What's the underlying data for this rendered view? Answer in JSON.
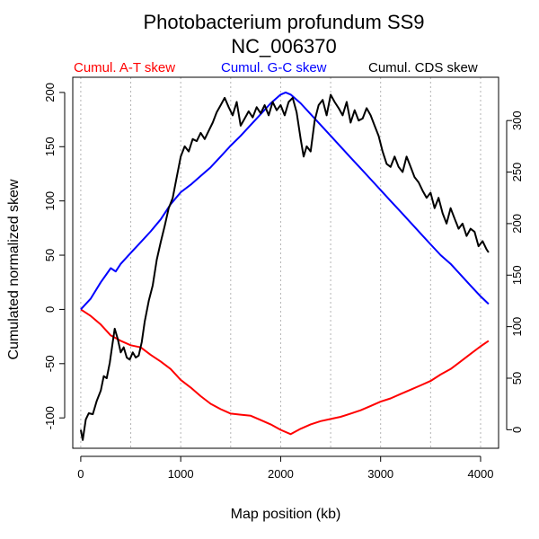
{
  "chart_data": {
    "type": "line",
    "title": "Photobacterium profundum SS9",
    "subtitle": "NC_006370",
    "xlabel": "Map position (kb)",
    "ylabel": "Cumulated normalized skew",
    "xlim": [
      -80,
      4180
    ],
    "ylim": [
      -128,
      214
    ],
    "y2lim": [
      -18,
      342
    ],
    "x_ticks": [
      0,
      1000,
      2000,
      3000,
      4000
    ],
    "y_ticks": [
      -100,
      -50,
      0,
      50,
      100,
      150,
      200
    ],
    "y2_ticks": [
      0,
      50,
      100,
      150,
      200,
      250,
      300
    ],
    "vgrid": [
      0,
      500,
      1000,
      1500,
      2000,
      2500,
      3000,
      3500,
      4000
    ],
    "legend": [
      {
        "label": "Cumul. A-T skew",
        "color": "#ff0000"
      },
      {
        "label": "Cumul. G-C skew",
        "color": "#0000ff"
      },
      {
        "label": "Cumul. CDS skew",
        "color": "#000000"
      }
    ],
    "series": [
      {
        "name": "Cumul. A-T skew",
        "color": "#ff0000",
        "axis": "left",
        "x": [
          0,
          100,
          200,
          300,
          400,
          500,
          600,
          700,
          800,
          900,
          1000,
          1100,
          1200,
          1300,
          1400,
          1500,
          1600,
          1700,
          1800,
          1900,
          2000,
          2100,
          2200,
          2300,
          2400,
          2500,
          2600,
          2700,
          2800,
          2900,
          3000,
          3100,
          3200,
          3300,
          3400,
          3500,
          3600,
          3700,
          3800,
          3900,
          4000,
          4080
        ],
        "y": [
          0,
          -6,
          -14,
          -24,
          -29,
          -33,
          -35,
          -42,
          -48,
          -55,
          -65,
          -72,
          -80,
          -87,
          -92,
          -96,
          -97,
          -98,
          -102,
          -106,
          -111,
          -115,
          -110,
          -106,
          -103,
          -101,
          -99,
          -96,
          -93,
          -89,
          -85,
          -82,
          -78,
          -74,
          -70,
          -66,
          -60,
          -55,
          -48,
          -41,
          -34,
          -29
        ]
      },
      {
        "name": "Cumul. G-C skew",
        "color": "#0000ff",
        "axis": "left",
        "x": [
          0,
          100,
          200,
          300,
          350,
          400,
          500,
          600,
          700,
          800,
          900,
          1000,
          1100,
          1200,
          1300,
          1400,
          1500,
          1600,
          1700,
          1800,
          1900,
          2000,
          2050,
          2100,
          2200,
          2300,
          2400,
          2500,
          2600,
          2700,
          2800,
          2900,
          3000,
          3100,
          3200,
          3300,
          3400,
          3500,
          3600,
          3700,
          3800,
          3900,
          4000,
          4080
        ],
        "y": [
          0,
          10,
          25,
          38,
          35,
          42,
          52,
          62,
          72,
          83,
          97,
          108,
          115,
          123,
          131,
          141,
          151,
          160,
          170,
          180,
          190,
          198,
          200,
          198,
          190,
          180,
          170,
          160,
          150,
          140,
          130,
          120,
          110,
          100,
          90,
          80,
          70,
          60,
          50,
          42,
          32,
          22,
          12,
          5
        ]
      },
      {
        "name": "Cumul. CDS skew",
        "color": "#000000",
        "axis": "right",
        "x": [
          0,
          20,
          50,
          80,
          120,
          160,
          200,
          230,
          260,
          290,
          320,
          340,
          370,
          400,
          430,
          460,
          490,
          520,
          550,
          580,
          610,
          640,
          680,
          720,
          760,
          800,
          840,
          880,
          920,
          960,
          1000,
          1040,
          1080,
          1120,
          1160,
          1200,
          1240,
          1280,
          1320,
          1360,
          1400,
          1440,
          1480,
          1520,
          1560,
          1600,
          1640,
          1680,
          1720,
          1760,
          1800,
          1840,
          1880,
          1920,
          1960,
          2000,
          2040,
          2080,
          2120,
          2160,
          2200,
          2230,
          2260,
          2300,
          2340,
          2380,
          2420,
          2460,
          2500,
          2540,
          2580,
          2620,
          2660,
          2700,
          2740,
          2780,
          2820,
          2860,
          2900,
          2940,
          2980,
          3020,
          3060,
          3100,
          3140,
          3180,
          3220,
          3260,
          3300,
          3340,
          3380,
          3420,
          3460,
          3500,
          3540,
          3580,
          3620,
          3660,
          3700,
          3740,
          3780,
          3820,
          3860,
          3900,
          3940,
          3980,
          4020,
          4060,
          4080
        ],
        "y": [
          0,
          -10,
          10,
          16,
          15,
          28,
          38,
          52,
          50,
          65,
          85,
          98,
          88,
          75,
          80,
          70,
          68,
          75,
          70,
          72,
          85,
          105,
          125,
          140,
          165,
          182,
          198,
          215,
          225,
          245,
          265,
          275,
          270,
          282,
          280,
          288,
          282,
          290,
          298,
          308,
          315,
          322,
          313,
          305,
          318,
          295,
          302,
          309,
          303,
          313,
          307,
          315,
          305,
          318,
          310,
          315,
          305,
          318,
          322,
          308,
          282,
          265,
          275,
          270,
          300,
          315,
          320,
          305,
          325,
          318,
          312,
          305,
          318,
          298,
          310,
          300,
          302,
          312,
          305,
          295,
          285,
          270,
          258,
          255,
          265,
          255,
          250,
          265,
          255,
          245,
          240,
          232,
          225,
          230,
          215,
          225,
          210,
          200,
          215,
          205,
          195,
          200,
          188,
          195,
          192,
          178,
          183,
          175,
          172
        ]
      }
    ]
  }
}
